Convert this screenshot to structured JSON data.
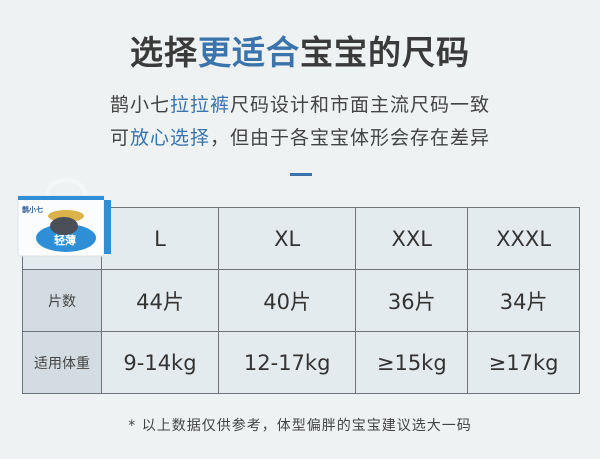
{
  "title": {
    "part1": "选择",
    "highlight": "更适合",
    "part2": "宝宝的尺码"
  },
  "subtitle": {
    "line1": {
      "pre": "鹊小七",
      "highlight": "拉拉裤",
      "post": "尺码设计和市面主流尺码一致"
    },
    "line2": {
      "pre": "可",
      "highlight": "放心选择",
      "post": "，但由于各宝宝体形会存在差异"
    }
  },
  "product_image": {
    "brand": "鹊小七",
    "label": "轻薄"
  },
  "table": {
    "sizes": [
      "L",
      "XL",
      "XXL",
      "XXXL"
    ],
    "rows": [
      {
        "label": "片数",
        "values": [
          "44片",
          "40片",
          "36片",
          "34片"
        ]
      },
      {
        "label": "适用体重",
        "values": [
          "9-14kg",
          "12-17kg",
          "≥15kg",
          "≥17kg"
        ]
      }
    ]
  },
  "note": "* 以上数据仅供参考，体型偏胖的宝宝建议选大一码",
  "colors": {
    "accent": "#3b74ac",
    "background": "#eef2f3"
  }
}
